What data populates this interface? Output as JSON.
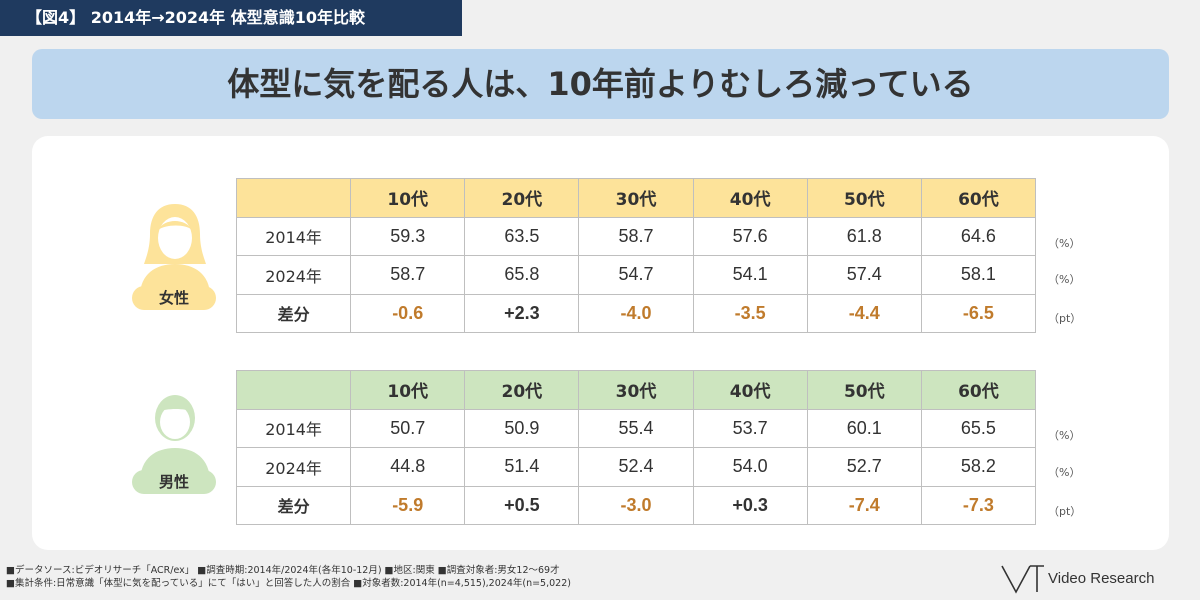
{
  "figure_label": "【図4】 2014年→2024年  体型意識10年比較",
  "headline": "体型に気を配る人は、10年前よりむしろ減っている",
  "colors": {
    "navy": "#1f3a5f",
    "headline_bg": "#bcd6ee",
    "female_accent": "#fde39a",
    "male_accent": "#cde5bf",
    "negative_value": "#c07b2c"
  },
  "chart_data": [
    {
      "type": "table",
      "group": "女性",
      "icon": "female-avatar-icon",
      "columns": [
        "10代",
        "20代",
        "30代",
        "40代",
        "50代",
        "60代"
      ],
      "rows": [
        {
          "label": "2014年",
          "values": [
            "59.3",
            "63.5",
            "58.7",
            "57.6",
            "61.8",
            "64.6"
          ],
          "unit": "（%）"
        },
        {
          "label": "2024年",
          "values": [
            "58.7",
            "65.8",
            "54.7",
            "54.1",
            "57.4",
            "58.1"
          ],
          "unit": "（%）"
        },
        {
          "label": "差分",
          "values": [
            "-0.6",
            "+2.3",
            "-4.0",
            "-3.5",
            "-4.4",
            "-6.5"
          ],
          "unit": "（pt）"
        }
      ]
    },
    {
      "type": "table",
      "group": "男性",
      "icon": "male-avatar-icon",
      "columns": [
        "10代",
        "20代",
        "30代",
        "40代",
        "50代",
        "60代"
      ],
      "rows": [
        {
          "label": "2014年",
          "values": [
            "50.7",
            "50.9",
            "55.4",
            "53.7",
            "60.1",
            "65.5"
          ],
          "unit": "（%）"
        },
        {
          "label": "2024年",
          "values": [
            "44.8",
            "51.4",
            "52.4",
            "54.0",
            "52.7",
            "58.2"
          ],
          "unit": "（%）"
        },
        {
          "label": "差分",
          "values": [
            "-5.9",
            "+0.5",
            "-3.0",
            "+0.3",
            "-7.4",
            "-7.3"
          ],
          "unit": "（pt）"
        }
      ]
    }
  ],
  "footer": {
    "line1": "■データソース:ビデオリサーチ「ACR/ex」 ■調査時期:2014年/2024年(各年10-12月)   ■地区:関東   ■調査対象者:男女12～69才",
    "line2": "■集計条件:日常意識「体型に気を配っている」にて「はい」と回答した人の割合   ■対象者数:2014年(n=4,515),2024年(n=5,022)"
  },
  "logo": {
    "icon": "video-research-logo-icon",
    "text": "Video Research"
  }
}
